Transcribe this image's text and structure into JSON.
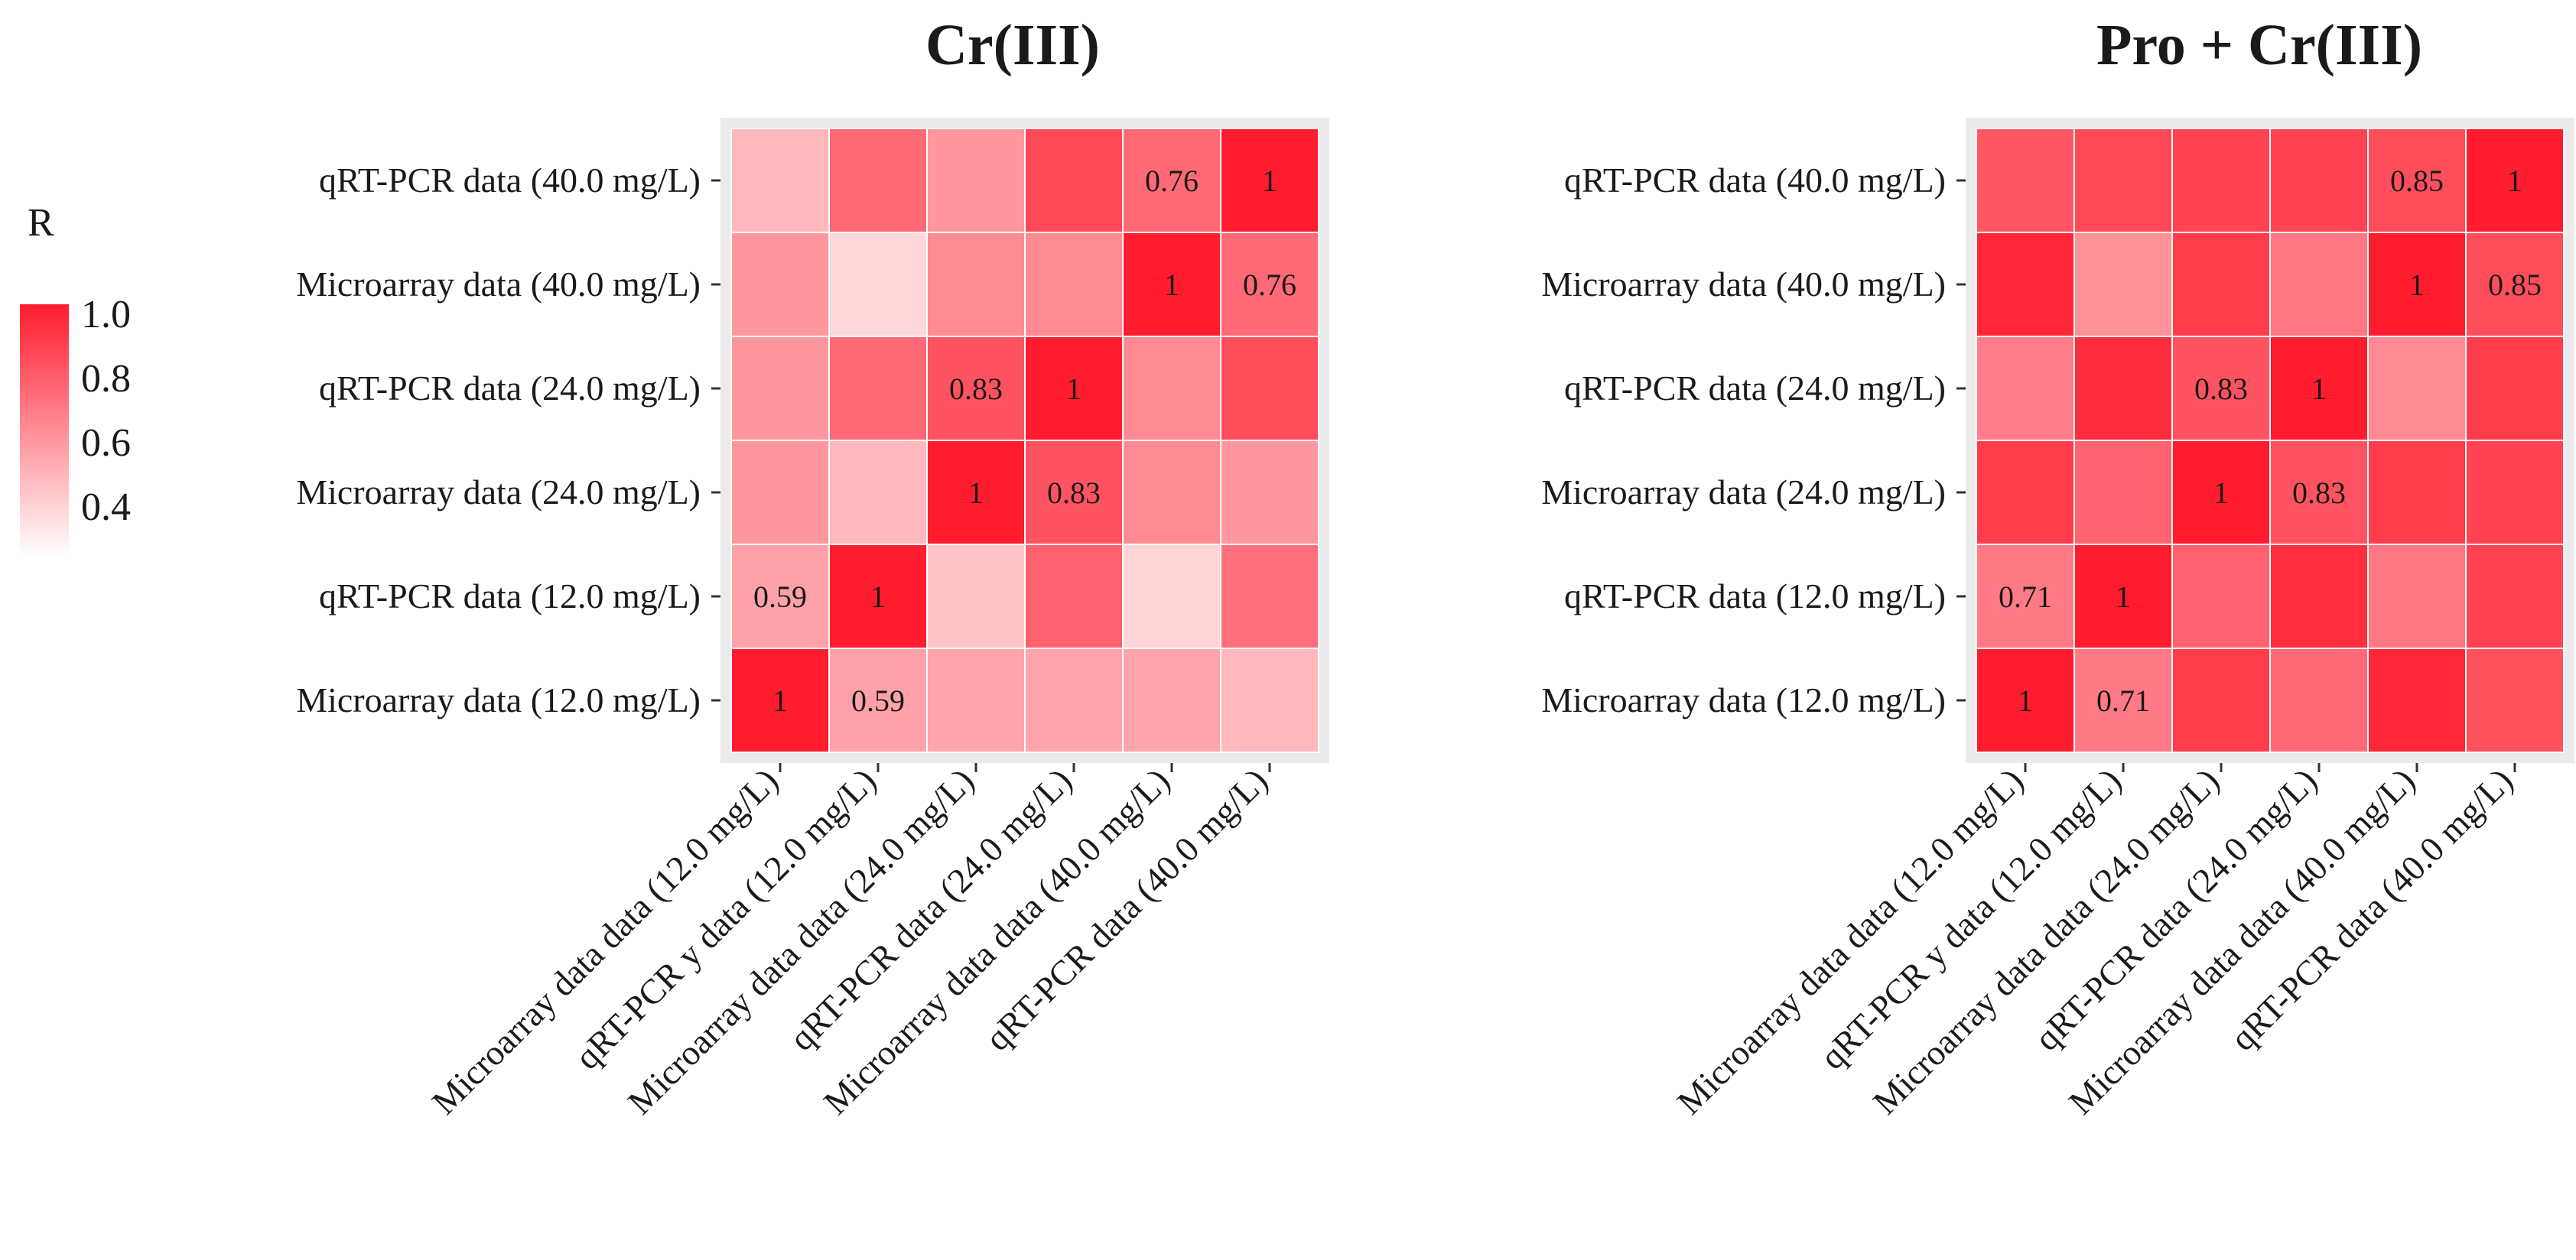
{
  "chart_data": [
    {
      "type": "heatmap",
      "title": "Cr(III)",
      "row_labels": [
        "qRT-PCR data (40.0 mg/L)",
        "Microarray data (40.0 mg/L)",
        "qRT-PCR data (24.0 mg/L)",
        "Microarray data (24.0 mg/L)",
        "qRT-PCR data (12.0 mg/L)",
        "Microarray data (12.0 mg/L)"
      ],
      "col_labels": [
        "Microarray data data (12.0 mg/L)",
        "qRT-PCR y data (12.0 mg/L)",
        "Microarray data data (24.0 mg/L)",
        "qRT-PCR data (24.0 mg/L)",
        "Microarray data data (40.0 mg/L)",
        "qRT-PCR data (40.0 mg/L)"
      ],
      "values": [
        [
          0.52,
          0.76,
          0.62,
          0.86,
          0.76,
          1.0
        ],
        [
          0.62,
          0.42,
          0.66,
          0.66,
          1.0,
          0.76
        ],
        [
          0.62,
          0.76,
          0.83,
          1.0,
          0.66,
          0.85
        ],
        [
          0.62,
          0.52,
          1.0,
          0.83,
          0.66,
          0.62
        ],
        [
          0.59,
          1.0,
          0.48,
          0.78,
          0.43,
          0.74
        ],
        [
          1.0,
          0.59,
          0.58,
          0.58,
          0.58,
          0.52
        ]
      ],
      "cell_labels": [
        [
          "",
          "",
          "",
          "",
          "0.76",
          "1"
        ],
        [
          "",
          "",
          "",
          "",
          "1",
          "0.76"
        ],
        [
          "",
          "",
          "0.83",
          "1",
          "",
          ""
        ],
        [
          "",
          "",
          "1",
          "0.83",
          "",
          ""
        ],
        [
          "0.59",
          "1",
          "",
          "",
          "",
          ""
        ],
        [
          "1",
          "0.59",
          "",
          "",
          "",
          ""
        ]
      ]
    },
    {
      "type": "heatmap",
      "title": "Pro + Cr(III)",
      "row_labels": [
        "qRT-PCR data (40.0 mg/L)",
        "Microarray data (40.0 mg/L)",
        "qRT-PCR data (24.0 mg/L)",
        "Microarray data (24.0 mg/L)",
        "qRT-PCR data (12.0 mg/L)",
        "Microarray data (12.0 mg/L)"
      ],
      "col_labels": [
        "Microarray data data (12.0 mg/L)",
        "qRT-PCR y data (12.0 mg/L)",
        "Microarray data data (24.0 mg/L)",
        "qRT-PCR data (24.0 mg/L)",
        "Microarray data data (40.0 mg/L)",
        "qRT-PCR data (40.0 mg/L)"
      ],
      "values": [
        [
          0.82,
          0.86,
          0.88,
          0.88,
          0.85,
          1.0
        ],
        [
          0.97,
          0.64,
          0.9,
          0.72,
          1.0,
          0.85
        ],
        [
          0.7,
          0.95,
          0.83,
          1.0,
          0.66,
          0.9
        ],
        [
          0.9,
          0.78,
          1.0,
          0.83,
          0.9,
          0.88
        ],
        [
          0.71,
          1.0,
          0.78,
          0.94,
          0.72,
          0.88
        ],
        [
          1.0,
          0.71,
          0.9,
          0.76,
          0.97,
          0.84
        ]
      ],
      "cell_labels": [
        [
          "",
          "",
          "",
          "",
          "0.85",
          "1"
        ],
        [
          "",
          "",
          "",
          "",
          "1",
          "0.85"
        ],
        [
          "",
          "",
          "0.83",
          "1",
          "",
          ""
        ],
        [
          "",
          "",
          "1",
          "0.83",
          "",
          ""
        ],
        [
          "0.71",
          "1",
          "",
          "",
          "",
          ""
        ],
        [
          "1",
          "0.71",
          "",
          "",
          "",
          ""
        ]
      ]
    }
  ],
  "legend": {
    "title": "R",
    "ticks": [
      "1.0",
      "0.8",
      "0.6",
      "0.4"
    ],
    "tick_values": [
      1.0,
      0.8,
      0.6,
      0.4
    ],
    "range": [
      0.3,
      1.0
    ],
    "color_low": "#ffffff",
    "color_high": "#ff1c2e"
  },
  "colors": {
    "panel_background": "#ebebeb",
    "cell_border": "#ffffff"
  }
}
